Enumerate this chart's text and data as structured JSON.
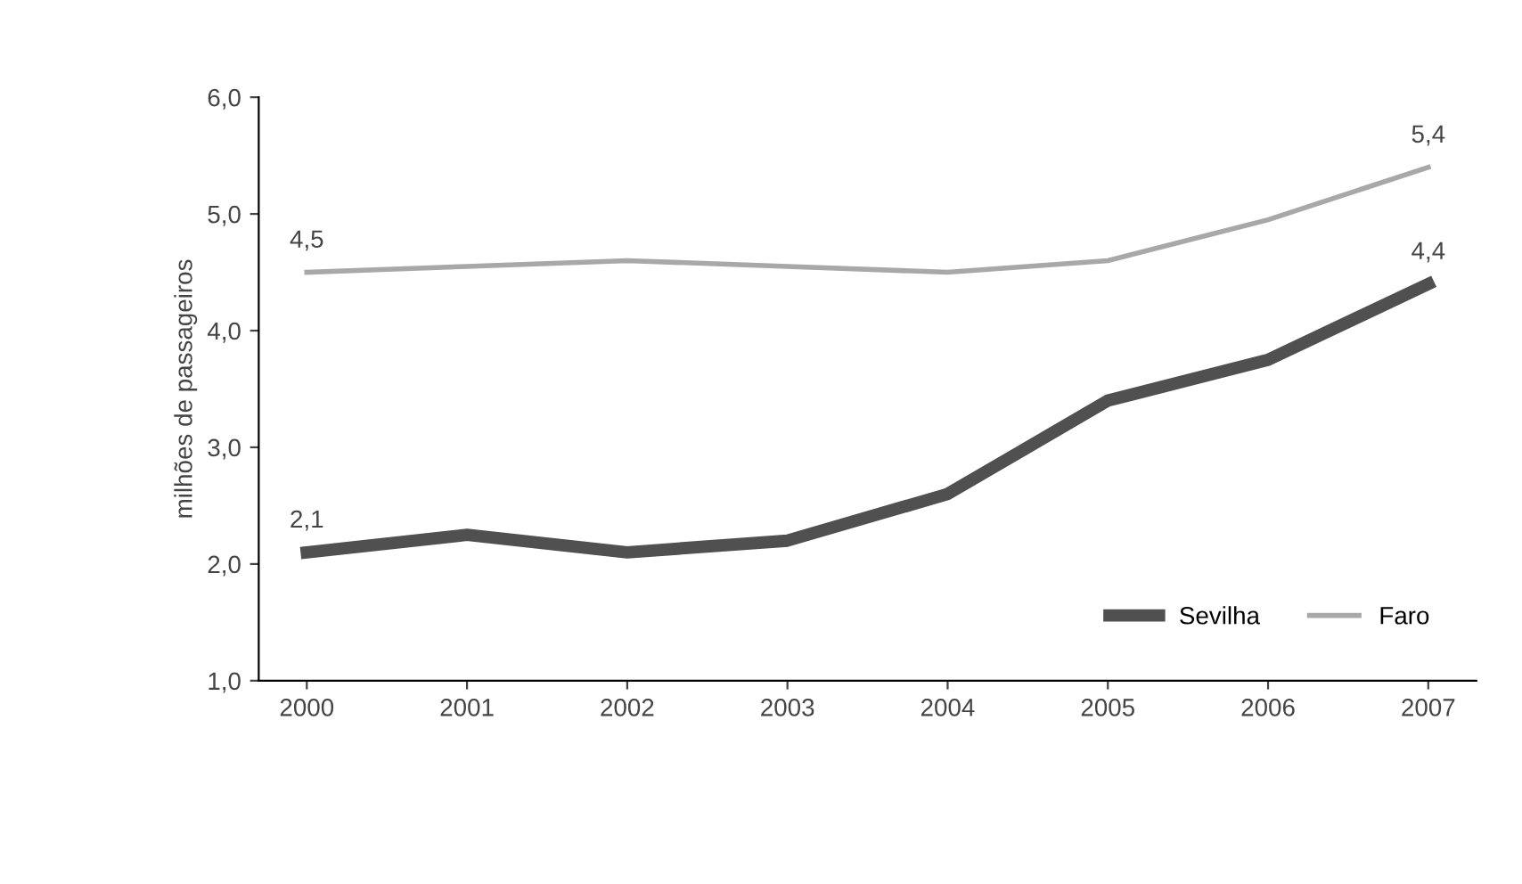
{
  "chart_data": {
    "type": "line",
    "ylabel": "milhões de passageiros",
    "categories": [
      "2000",
      "2001",
      "2002",
      "2003",
      "2004",
      "2005",
      "2006",
      "2007"
    ],
    "series": [
      {
        "name": "Sevilha",
        "color": "#505050",
        "values": [
          2.1,
          2.25,
          2.1,
          2.2,
          2.6,
          3.4,
          3.75,
          4.4
        ],
        "value_labels": [
          "2,1",
          null,
          null,
          null,
          null,
          null,
          null,
          "4,4"
        ]
      },
      {
        "name": "Faro",
        "color": "#a8a8a8",
        "values": [
          4.5,
          4.55,
          4.6,
          4.55,
          4.5,
          4.6,
          4.95,
          5.4
        ],
        "value_labels": [
          "4,5",
          null,
          null,
          null,
          null,
          null,
          null,
          "5,4"
        ]
      }
    ],
    "ylim": [
      1.0,
      6.0
    ],
    "yticks": [
      {
        "value": 1.0,
        "label": "1,0"
      },
      {
        "value": 2.0,
        "label": "2,0"
      },
      {
        "value": 3.0,
        "label": "3,0"
      },
      {
        "value": 4.0,
        "label": "4,0"
      },
      {
        "value": 5.0,
        "label": "5,0"
      },
      {
        "value": 6.0,
        "label": "6,0"
      }
    ],
    "grid": false,
    "legend": "bottom right",
    "marker": "none",
    "line_style": "solid"
  }
}
